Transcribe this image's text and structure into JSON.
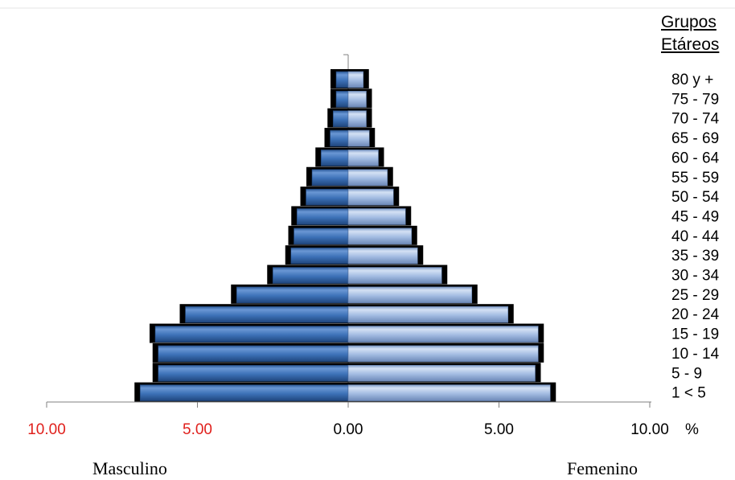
{
  "chart_data": {
    "type": "bar",
    "orientation": "horizontal",
    "layout": "population-pyramid",
    "legend_title_line1": "Grupos",
    "legend_title_line2": "Etáreos",
    "categories": [
      "80 y +",
      "75 - 79",
      "70 - 74",
      "65 - 69",
      "60 - 64",
      "55 - 59",
      "50 - 54",
      "45 - 49",
      "40 - 44",
      "35 - 39",
      "30 - 34",
      "25 - 29",
      "20 - 24",
      "15 - 19",
      "10 - 14",
      "5 - 9",
      "1 < 5"
    ],
    "series": [
      {
        "name": "Masculino",
        "values": [
          0.4,
          0.4,
          0.5,
          0.6,
          0.9,
          1.2,
          1.4,
          1.7,
          1.8,
          1.9,
          2.5,
          3.7,
          5.4,
          6.4,
          6.3,
          6.3,
          6.9
        ]
      },
      {
        "name": "Femenino",
        "values": [
          0.5,
          0.6,
          0.6,
          0.7,
          1.0,
          1.3,
          1.5,
          1.9,
          2.1,
          2.3,
          3.1,
          4.1,
          5.3,
          6.3,
          6.3,
          6.2,
          6.7
        ]
      }
    ],
    "x_ticks": [
      {
        "value": -10,
        "label": "10.00",
        "color": "#e0201c"
      },
      {
        "value": -5,
        "label": "5.00",
        "color": "#e0201c"
      },
      {
        "value": 0,
        "label": "0.00",
        "color": "#000000"
      },
      {
        "value": 5,
        "label": "5.00",
        "color": "#000000"
      },
      {
        "value": 10,
        "label": "10.00",
        "color": "#000000"
      }
    ],
    "x_unit": "%",
    "xlim": [
      -10,
      10
    ],
    "left_label": "Masculino",
    "right_label": "Femenino",
    "colors": {
      "male": "#3b6fb4",
      "female": "#9fb8e0",
      "shadow": "#000000"
    },
    "grid": false
  }
}
